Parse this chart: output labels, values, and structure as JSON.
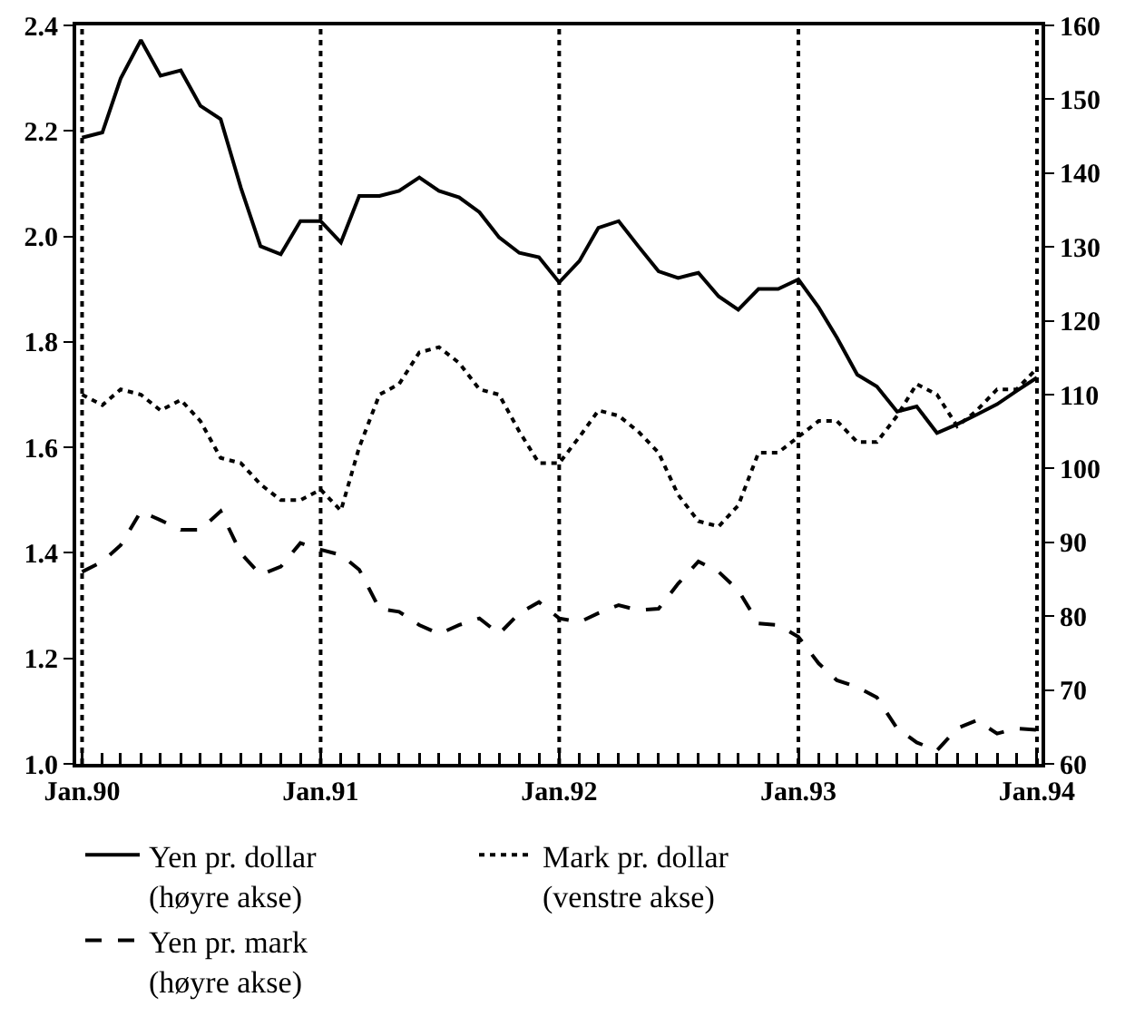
{
  "chart_data": {
    "type": "line",
    "x": [
      "1990-01",
      "1990-02",
      "1990-03",
      "1990-04",
      "1990-05",
      "1990-06",
      "1990-07",
      "1990-08",
      "1990-09",
      "1990-10",
      "1990-11",
      "1990-12",
      "1991-01",
      "1991-02",
      "1991-03",
      "1991-04",
      "1991-05",
      "1991-06",
      "1991-07",
      "1991-08",
      "1991-09",
      "1991-10",
      "1991-11",
      "1991-12",
      "1992-01",
      "1992-02",
      "1992-03",
      "1992-04",
      "1992-05",
      "1992-06",
      "1992-07",
      "1992-08",
      "1992-09",
      "1992-10",
      "1992-11",
      "1992-12",
      "1993-01",
      "1993-02",
      "1993-03",
      "1993-04",
      "1993-05",
      "1993-06",
      "1993-07",
      "1993-08",
      "1993-09",
      "1993-10",
      "1993-11",
      "1993-12",
      "1994-01"
    ],
    "series": [
      {
        "name": "Yen pr. dollar (høyre akse)",
        "color": "#000000",
        "axis": "y2",
        "line_style": "solid",
        "values": [
          144.8,
          145.5,
          152.8,
          158,
          153.2,
          153.9,
          149.1,
          147.3,
          138,
          130.1,
          129,
          133.5,
          133.5,
          130.6,
          136.9,
          136.9,
          137.6,
          139.4,
          137.6,
          136.7,
          134.7,
          131.3,
          129.2,
          128.6,
          125.2,
          128.1,
          132.6,
          133.5,
          130.1,
          126.7,
          125.8,
          126.5,
          123.3,
          121.5,
          124.3,
          124.3,
          125.6,
          121.8,
          117.7,
          112.7,
          111.1,
          107.7,
          108.4,
          104.8,
          106,
          107.3,
          108.7,
          110.5,
          112.3
        ]
      },
      {
        "name": "Mark pr. dollar (venstre akse)",
        "color": "#000000",
        "line_style": "dotted",
        "values": [
          1.7,
          1.68,
          1.71,
          1.7,
          1.67,
          1.69,
          1.65,
          1.58,
          1.57,
          1.53,
          1.5,
          1.5,
          1.52,
          1.48,
          1.6,
          1.7,
          1.72,
          1.78,
          1.79,
          1.76,
          1.71,
          1.7,
          1.63,
          1.57,
          1.57,
          1.62,
          1.67,
          1.66,
          1.63,
          1.59,
          1.51,
          1.46,
          1.45,
          1.49,
          1.59,
          1.59,
          1.62,
          1.65,
          1.65,
          1.61,
          1.61,
          1.66,
          1.72,
          1.7,
          1.64,
          1.67,
          1.71,
          1.71,
          1.75
        ]
      },
      {
        "name": "Yen pr. mark (høyre akse)",
        "color": "#000000",
        "axis": "y2",
        "line_style": "dashed",
        "values": [
          86,
          87.4,
          89.6,
          94.2,
          93,
          91.7,
          91.7,
          94.2,
          88.5,
          85.6,
          86.7,
          89.9,
          89,
          88.3,
          86.3,
          81,
          80.6,
          78.8,
          77.6,
          78.8,
          79.7,
          77.6,
          80.4,
          81.9,
          79.7,
          79.2,
          80.4,
          81.5,
          80.8,
          81,
          84.4,
          87.4,
          86,
          83.5,
          79,
          78.8,
          77.2,
          73.6,
          71.3,
          70.4,
          69,
          64.8,
          62.9,
          61.8,
          64.8,
          65.9,
          64.1,
          64.8,
          64.6
        ]
      }
    ],
    "xlim": [
      "1989-12-23",
      "1994-01-08"
    ],
    "xticks": [
      {
        "value": "1990-01",
        "label": "Jan.90"
      },
      {
        "value": "1990-02",
        "label": null
      },
      {
        "value": "1990-03",
        "label": null
      },
      {
        "value": "1990-04",
        "label": null
      },
      {
        "value": "1990-05",
        "label": null
      },
      {
        "value": "1990-06",
        "label": null
      },
      {
        "value": "1990-07",
        "label": null
      },
      {
        "value": "1990-08",
        "label": null
      },
      {
        "value": "1990-09",
        "label": null
      },
      {
        "value": "1990-10",
        "label": null
      },
      {
        "value": "1990-11",
        "label": null
      },
      {
        "value": "1990-12",
        "label": null
      },
      {
        "value": "1991-01",
        "label": "Jan.91"
      },
      {
        "value": "1991-02",
        "label": null
      },
      {
        "value": "1991-03",
        "label": null
      },
      {
        "value": "1991-04",
        "label": null
      },
      {
        "value": "1991-05",
        "label": null
      },
      {
        "value": "1991-06",
        "label": null
      },
      {
        "value": "1991-07",
        "label": null
      },
      {
        "value": "1991-08",
        "label": null
      },
      {
        "value": "1991-09",
        "label": null
      },
      {
        "value": "1991-10",
        "label": null
      },
      {
        "value": "1991-11",
        "label": null
      },
      {
        "value": "1991-12",
        "label": null
      },
      {
        "value": "1992-01",
        "label": "Jan.92"
      },
      {
        "value": "1992-02",
        "label": null
      },
      {
        "value": "1992-03",
        "label": null
      },
      {
        "value": "1992-04",
        "label": null
      },
      {
        "value": "1992-05",
        "label": null
      },
      {
        "value": "1992-06",
        "label": null
      },
      {
        "value": "1992-07",
        "label": null
      },
      {
        "value": "1992-08",
        "label": null
      },
      {
        "value": "1992-09",
        "label": null
      },
      {
        "value": "1992-10",
        "label": null
      },
      {
        "value": "1992-11",
        "label": null
      },
      {
        "value": "1992-12",
        "label": null
      },
      {
        "value": "1993-01",
        "label": "Jan.93"
      },
      {
        "value": "1993-02",
        "label": null
      },
      {
        "value": "1993-03",
        "label": null
      },
      {
        "value": "1993-04",
        "label": null
      },
      {
        "value": "1993-05",
        "label": null
      },
      {
        "value": "1993-06",
        "label": null
      },
      {
        "value": "1993-07",
        "label": null
      },
      {
        "value": "1993-08",
        "label": null
      },
      {
        "value": "1993-09",
        "label": null
      },
      {
        "value": "1993-10",
        "label": null
      },
      {
        "value": "1993-11",
        "label": null
      },
      {
        "value": "1993-12",
        "label": null
      },
      {
        "value": "1994-01",
        "label": "Jan.94"
      }
    ],
    "ylim": [
      1.0,
      2.4
    ],
    "yticks": [
      {
        "value": 1.0,
        "label": "1.0"
      },
      1.2,
      1.4,
      1.6,
      1.8,
      {
        "value": 2.0,
        "label": "2.0"
      },
      2.2,
      2.4
    ],
    "y2lim": [
      60,
      160
    ],
    "y2ticks": [
      60,
      70,
      80,
      90,
      100,
      110,
      120,
      130,
      140,
      150,
      160
    ],
    "ref_lines": [
      {
        "axis": "x",
        "value": "1990-01",
        "line_style": "dotted",
        "color": "#000000"
      },
      {
        "axis": "x",
        "value": "1991-01",
        "line_style": "dotted",
        "color": "#000000"
      },
      {
        "axis": "x",
        "value": "1992-01",
        "line_style": "dotted",
        "color": "#000000"
      },
      {
        "axis": "x",
        "value": "1993-01",
        "line_style": "dotted",
        "color": "#000000"
      },
      {
        "axis": "x",
        "value": "1994-01",
        "line_style": "dotted",
        "color": "#000000"
      }
    ],
    "grid": false,
    "legend": "bottom"
  }
}
